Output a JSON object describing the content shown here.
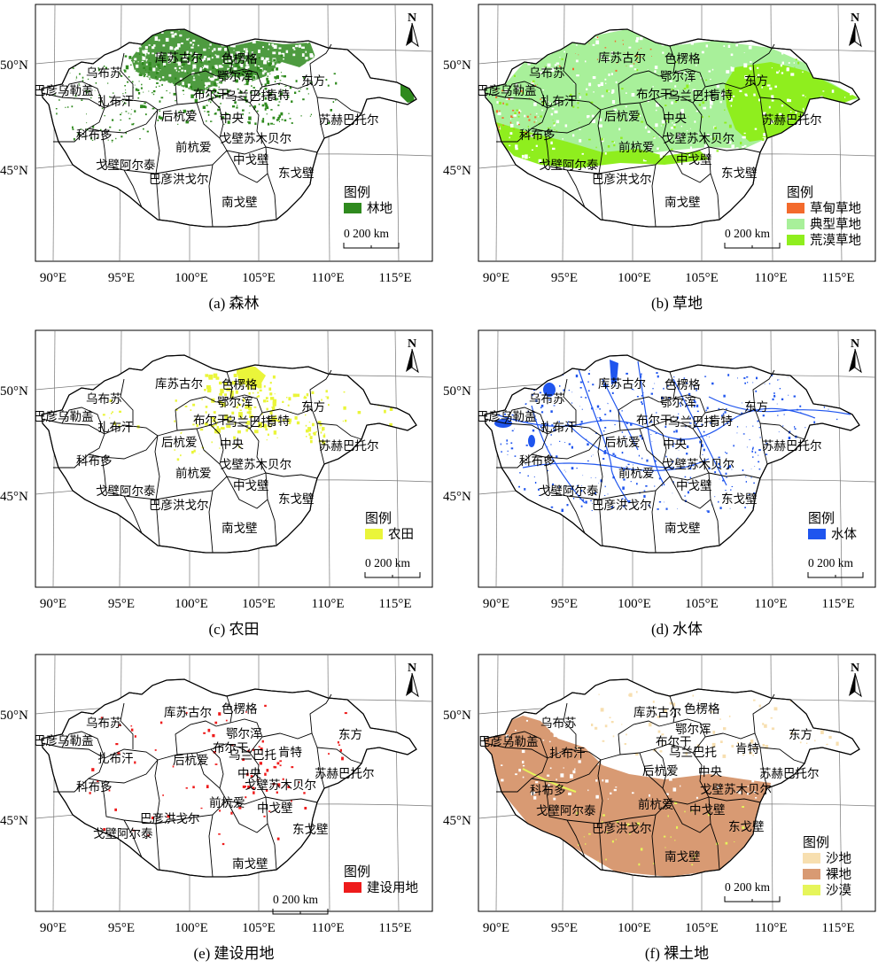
{
  "figure": {
    "lat_labels": [
      "50°N",
      "45°N"
    ],
    "lon_labels": [
      "90°E",
      "95°E",
      "100°E",
      "105°E",
      "110°E",
      "115°E"
    ],
    "north_letter": "N",
    "legend_title": "图例",
    "scale_text": "0   200 km",
    "colors": {
      "forest": "#2f8a1e",
      "meadow": "#f36a2c",
      "typical": "#a8f09a",
      "desert_steppe": "#8fee1e",
      "cropland": "#eaf53a",
      "water": "#1f55ee",
      "built": "#ee1b1b",
      "sand": "#f7dfb0",
      "bare": "#d89a73",
      "sandy_desert": "#e6f55a"
    }
  },
  "province_labels": [
    "乌布苏",
    "库苏古尔",
    "色楞格",
    "巴彦乌勒盖",
    "鄂尔浑",
    "布尔干",
    "乌兰巴托",
    "扎布汗",
    "后杭爱",
    "肯特",
    "东方",
    "中央",
    "苏赫巴托尔",
    "科布多",
    "戈壁苏木贝尔",
    "前杭爱",
    "戈壁阿尔泰",
    "中戈壁",
    "巴彦洪戈尔",
    "东戈壁",
    "南戈壁"
  ],
  "panels": [
    {
      "id": "a",
      "caption": "(a) 森林",
      "legend": [
        {
          "label": "林地",
          "color": "#2f8a1e"
        }
      ]
    },
    {
      "id": "b",
      "caption": "(b) 草地",
      "legend": [
        {
          "label": "草甸草地",
          "color": "#f36a2c"
        },
        {
          "label": "典型草地",
          "color": "#a8f09a"
        },
        {
          "label": "荒漠草地",
          "color": "#8fee1e"
        }
      ]
    },
    {
      "id": "c",
      "caption": "(c) 农田",
      "legend": [
        {
          "label": "农田",
          "color": "#eaf53a"
        }
      ]
    },
    {
      "id": "d",
      "caption": "(d) 水体",
      "legend": [
        {
          "label": "水体",
          "color": "#1f55ee"
        }
      ]
    },
    {
      "id": "e",
      "caption": "(e) 建设用地",
      "legend": [
        {
          "label": "建设用地",
          "color": "#ee1b1b"
        }
      ]
    },
    {
      "id": "f",
      "caption": "(f) 裸土地",
      "legend": [
        {
          "label": "沙地",
          "color": "#f7dfb0"
        },
        {
          "label": "裸地",
          "color": "#d89a73"
        },
        {
          "label": "沙漠",
          "color": "#e6f55a"
        }
      ]
    }
  ]
}
